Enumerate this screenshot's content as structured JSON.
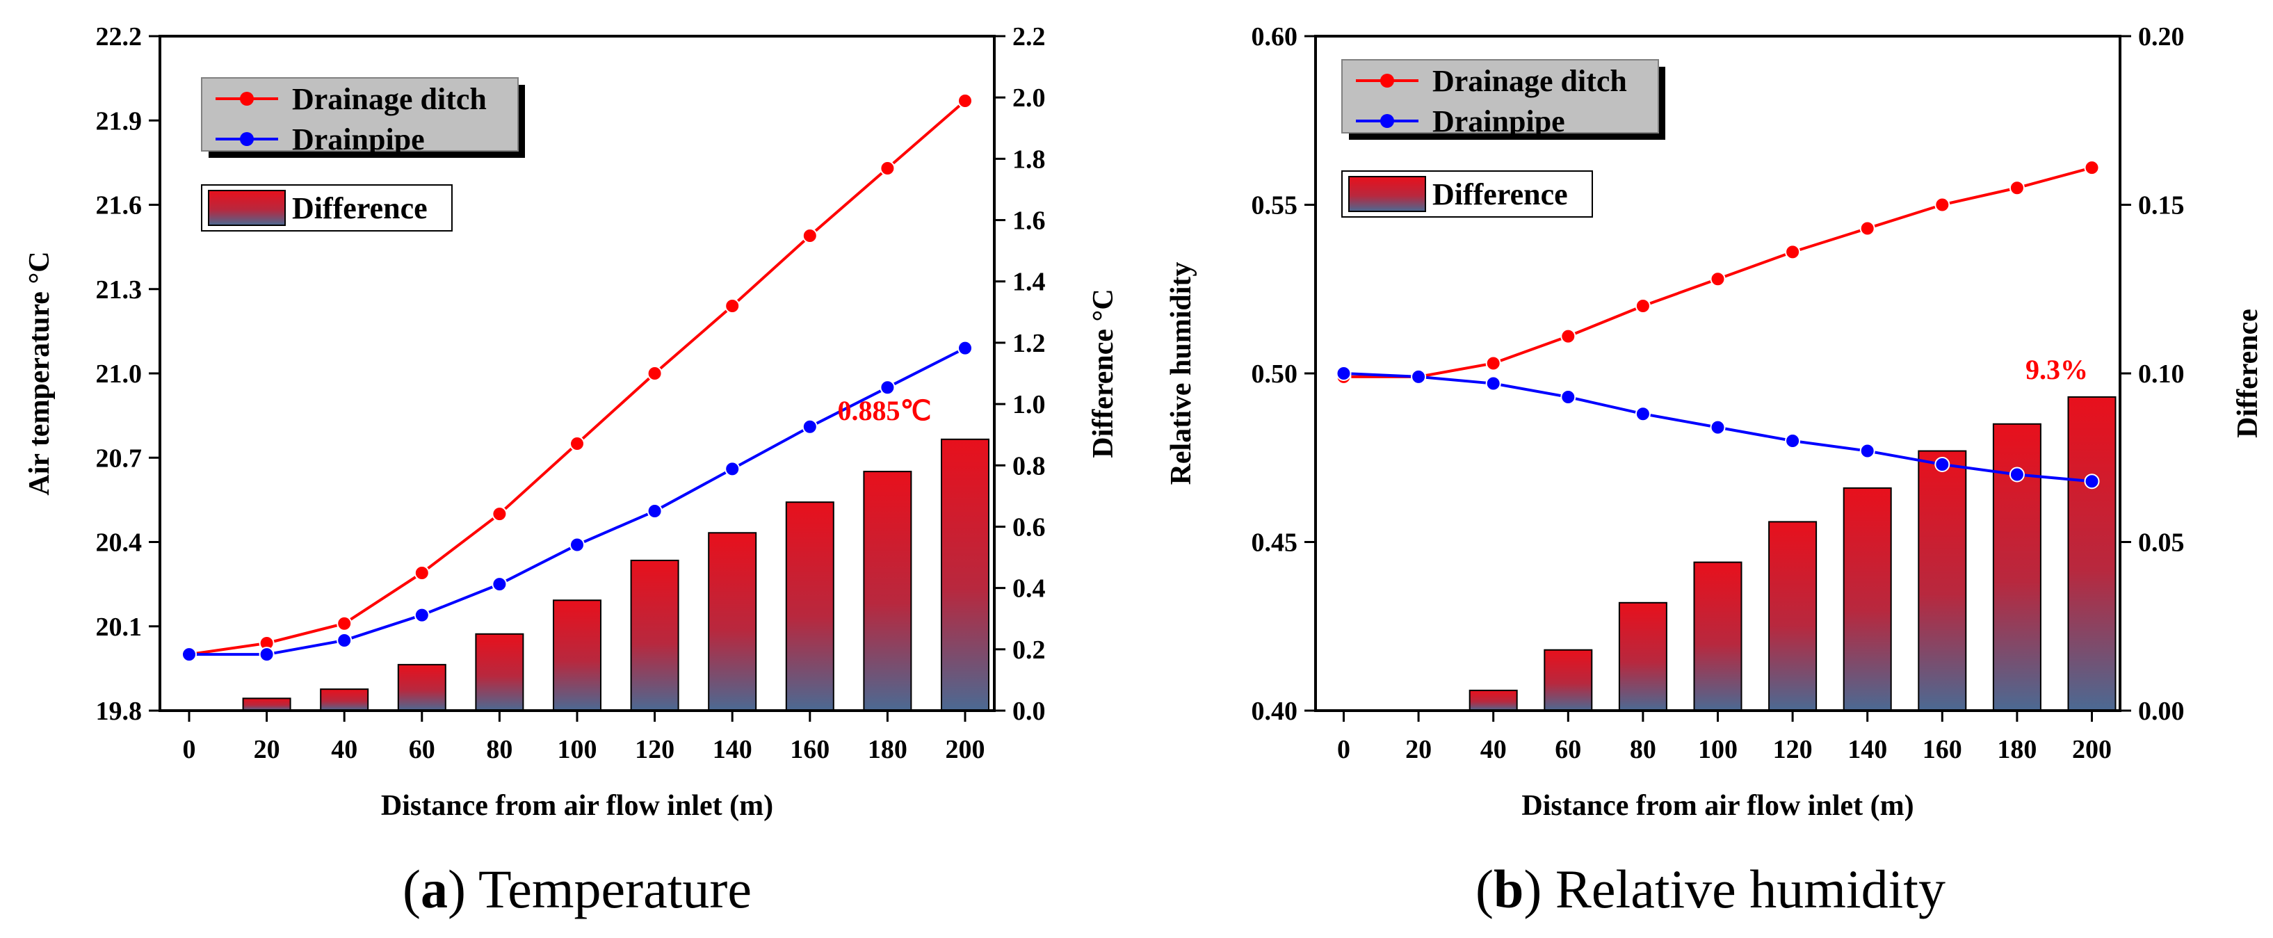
{
  "chart_data": [
    {
      "type": "line+bar",
      "panel_letter": "a",
      "panel_title": "Temperature",
      "xlabel": "Distance from air flow inlet (m)",
      "ylabel_left": "Air temperature °C",
      "ylabel_right": "Difference °C",
      "x": [
        0,
        20,
        40,
        60,
        80,
        100,
        120,
        140,
        160,
        180,
        200
      ],
      "xlim": [
        0,
        200
      ],
      "ylim_left": [
        19.8,
        22.2
      ],
      "yticks_left": [
        "19.8",
        "20.1",
        "20.4",
        "20.7",
        "21.0",
        "21.3",
        "21.6",
        "21.9",
        "22.2"
      ],
      "ylim_right": [
        0,
        2.2
      ],
      "yticks_right": [
        "0.0",
        "0.2",
        "0.4",
        "0.6",
        "0.8",
        "1.0",
        "1.2",
        "1.4",
        "1.6",
        "1.8",
        "2.0",
        "2.2"
      ],
      "series": [
        {
          "name": "Drainage ditch",
          "color": "#ff0000",
          "axis": "left",
          "values": [
            20.0,
            20.04,
            20.11,
            20.29,
            20.5,
            20.75,
            21.0,
            21.24,
            21.49,
            21.73,
            21.97
          ]
        },
        {
          "name": "Drainpipe",
          "color": "#0000ff",
          "axis": "left",
          "values": [
            20.0,
            20.0,
            20.05,
            20.14,
            20.25,
            20.39,
            20.51,
            20.66,
            20.81,
            20.95,
            21.09
          ]
        }
      ],
      "bars": {
        "name": "Difference",
        "axis": "right",
        "values": [
          0.0,
          0.04,
          0.07,
          0.15,
          0.25,
          0.36,
          0.49,
          0.58,
          0.68,
          0.78,
          0.885
        ]
      },
      "annotation": "0.885℃"
    },
    {
      "type": "line+bar",
      "panel_letter": "b",
      "panel_title": "Relative humidity",
      "xlabel": "Distance from air flow inlet (m)",
      "ylabel_left": "Relative humidity",
      "ylabel_right": "Difference",
      "x": [
        0,
        20,
        40,
        60,
        80,
        100,
        120,
        140,
        160,
        180,
        200
      ],
      "xlim": [
        0,
        200
      ],
      "ylim_left": [
        0.4,
        0.6
      ],
      "yticks_left": [
        "0.40",
        "0.45",
        "0.50",
        "0.55",
        "0.60"
      ],
      "ylim_right": [
        0,
        0.2
      ],
      "yticks_right": [
        "0.00",
        "0.05",
        "0.10",
        "0.15",
        "0.20"
      ],
      "series": [
        {
          "name": "Drainage ditch",
          "color": "#ff0000",
          "axis": "left",
          "values": [
            0.499,
            0.499,
            0.503,
            0.511,
            0.52,
            0.528,
            0.536,
            0.543,
            0.55,
            0.555,
            0.561
          ]
        },
        {
          "name": "Drainpipe",
          "color": "#0000ff",
          "axis": "left",
          "values": [
            0.5,
            0.499,
            0.497,
            0.493,
            0.488,
            0.484,
            0.48,
            0.477,
            0.473,
            0.47,
            0.468
          ]
        }
      ],
      "bars": {
        "name": "Difference",
        "axis": "right",
        "values": [
          0.0,
          0.0,
          0.006,
          0.018,
          0.032,
          0.044,
          0.056,
          0.066,
          0.077,
          0.085,
          0.093
        ]
      },
      "annotation": "9.3%"
    }
  ]
}
